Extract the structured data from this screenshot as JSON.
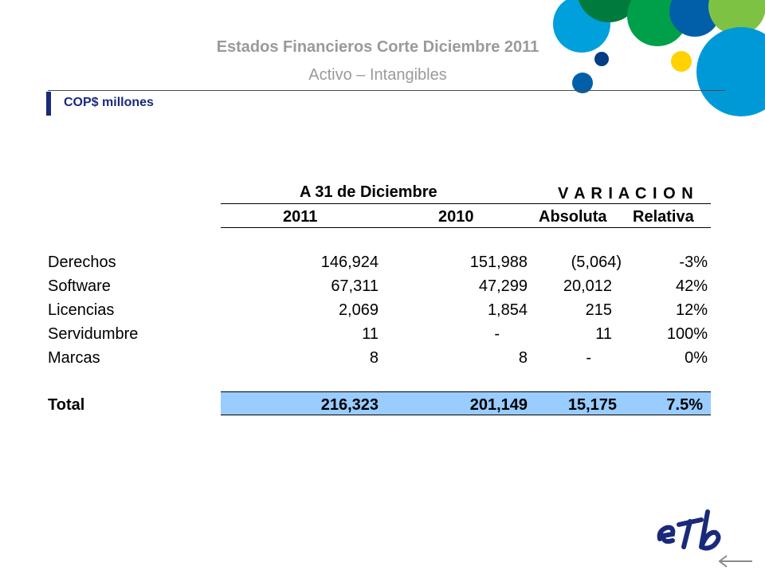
{
  "header": {
    "title": "Estados Financieros Corte Diciembre 2011",
    "subtitle": "Activo – Intangibles",
    "units": "COP$ millones"
  },
  "table": {
    "group_period": "A 31 de Diciembre",
    "group_variation": "V A R I A C I O N",
    "columns": [
      "2011",
      "2010",
      "Absoluta",
      "Relativa"
    ],
    "rows": [
      {
        "label": "Derechos",
        "y2011": "146,924",
        "y2010": "151,988",
        "abs": "(5,064)",
        "rel": "-3%"
      },
      {
        "label": "Software",
        "y2011": "67,311",
        "y2010": "47,299",
        "abs": "20,012",
        "rel": "42%"
      },
      {
        "label": "Licencias",
        "y2011": "2,069",
        "y2010": "1,854",
        "abs": "215",
        "rel": "12%"
      },
      {
        "label": "Servidumbre",
        "y2011": "11",
        "y2010": "-",
        "abs": "11",
        "rel": "100%"
      },
      {
        "label": "Marcas",
        "y2011": "8",
        "y2010": "8",
        "abs": "-",
        "rel": "0%"
      }
    ],
    "total": {
      "label": "Total",
      "y2011": "216,323",
      "y2010": "201,149",
      "abs": "15,175",
      "rel": "7.5%"
    }
  },
  "brand": {
    "logo_text": "eTb",
    "colors": {
      "dark_blue": "#1a2a7a",
      "cyan": "#0099d8",
      "green": "#00a04a",
      "light_green": "#7dc242",
      "yellow": "#ffd200",
      "navy": "#003d85",
      "total_fill": "#99ccff"
    }
  },
  "nav": {
    "back_icon": "arrow-left-icon"
  }
}
